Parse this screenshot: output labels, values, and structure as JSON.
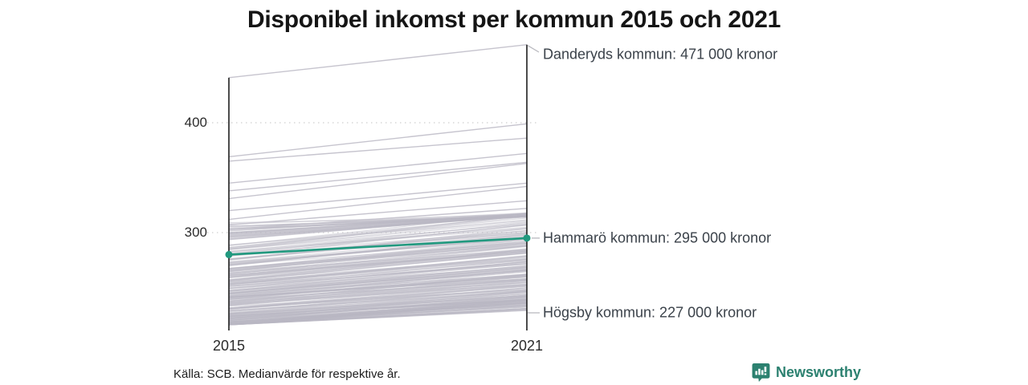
{
  "chart_data": {
    "type": "line",
    "subtype": "slope-chart",
    "title": "Disponibel inkomst per kommun 2015 och 2021",
    "x": [
      2015,
      2021
    ],
    "x_ticks": [
      {
        "label": "2015",
        "year": 2015
      },
      {
        "label": "2021",
        "year": 2021
      }
    ],
    "y_ticks": [
      {
        "label": "400",
        "value": 400
      },
      {
        "label": "300",
        "value": 300
      }
    ],
    "ylim": [
      214,
      475
    ],
    "unit": "tusen kronor",
    "grid": "dotted-horizontal",
    "highlight_series": {
      "name": "Hammarö kommun",
      "values": [
        280,
        295
      ],
      "color": "#21997f"
    },
    "labeled_series": [
      {
        "name": "Danderyds kommun",
        "values": [
          441,
          471
        ],
        "label": "Danderyds kommun: 471 000 kronor"
      },
      {
        "name": "Hammarö kommun",
        "values": [
          280,
          295
        ],
        "label": "Hammarö kommun: 295 000 kronor"
      },
      {
        "name": "Högsby kommun",
        "values": [
          null,
          227
        ],
        "label": "Högsby kommun: 227 000 kronor"
      }
    ],
    "upper_background_lines": [
      [
        369,
        399
      ],
      [
        365,
        386
      ],
      [
        345,
        372
      ],
      [
        338,
        364
      ],
      [
        331,
        363
      ],
      [
        320,
        345
      ],
      [
        312,
        342
      ],
      [
        307,
        329
      ],
      [
        303,
        322
      ]
    ],
    "background_band": {
      "count": 270,
      "start_range": [
        216,
        310
      ],
      "end_range": [
        221,
        318
      ],
      "seed": 7,
      "color": "#b9b7c3",
      "opacity": 0.5
    },
    "axis_color": "#1f1f1f",
    "grid_color": "#d7d7d7",
    "leader_color": "#b9b9bf",
    "scale": {
      "x2015": 285,
      "x2021": 656,
      "y400": 153,
      "y300": 290,
      "axis_bottom": 412,
      "grid_x0": 258,
      "grid_x1": 669
    }
  },
  "annotations": [
    {
      "label": "Danderyds kommun: 471 000 kronor",
      "value": 471
    },
    {
      "label": "Hammarö kommun: 295 000 kronor",
      "value": 295
    },
    {
      "label": "Högsby kommun: 227 000 kronor",
      "value": 227
    }
  ],
  "footer": {
    "source": "Källa: SCB. Medianvärde för respektive år.",
    "brand": "Newsworthy",
    "brand_color": "#2c8170"
  }
}
